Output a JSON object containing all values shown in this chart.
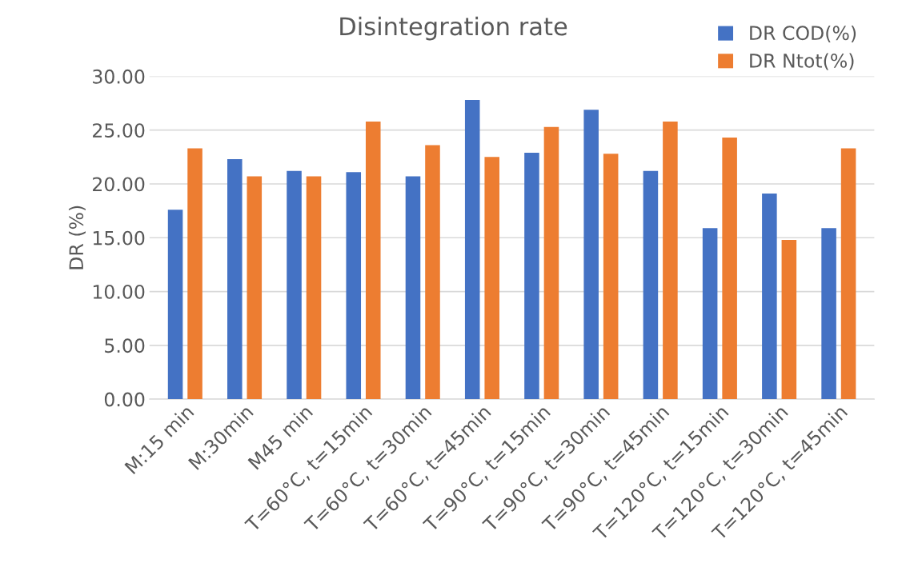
{
  "chart_data": {
    "type": "bar",
    "title": "Disintegration rate",
    "ylabel": "DR (%)",
    "categories": [
      "M:15 min",
      "M:30min",
      "M45 min",
      "T=60°C, t=15min",
      "T=60°C, t=30min",
      "T=60°C, t=45min",
      "T=90°C, t=15min",
      "T=90°C, t=30min",
      "T=90°C, t=45min",
      "T=120°C, t=15min",
      "T=120°C, t=30min",
      "T=120°C, t=45min"
    ],
    "series": [
      {
        "name": "DR COD(%)",
        "color": "#4472c4",
        "values": [
          17.6,
          22.3,
          21.2,
          21.1,
          20.7,
          27.8,
          22.9,
          26.9,
          21.2,
          15.9,
          19.1,
          15.9
        ]
      },
      {
        "name": "DR Ntot(%)",
        "color": "#ed7d31",
        "values": [
          23.3,
          20.7,
          20.7,
          25.8,
          23.6,
          22.5,
          25.3,
          22.8,
          25.8,
          24.3,
          14.8,
          23.3
        ]
      }
    ],
    "ylim": [
      0,
      30
    ],
    "yticks": [
      {
        "value": 0,
        "label": "0.00"
      },
      {
        "value": 5,
        "label": "5.00"
      },
      {
        "value": 10,
        "label": "10.00"
      },
      {
        "value": 15,
        "label": "15.00"
      },
      {
        "value": 20,
        "label": "20.00"
      },
      {
        "value": 25,
        "label": "25.00"
      },
      {
        "value": 30,
        "label": "30.00"
      }
    ],
    "grid": "y",
    "legend": "top right"
  }
}
